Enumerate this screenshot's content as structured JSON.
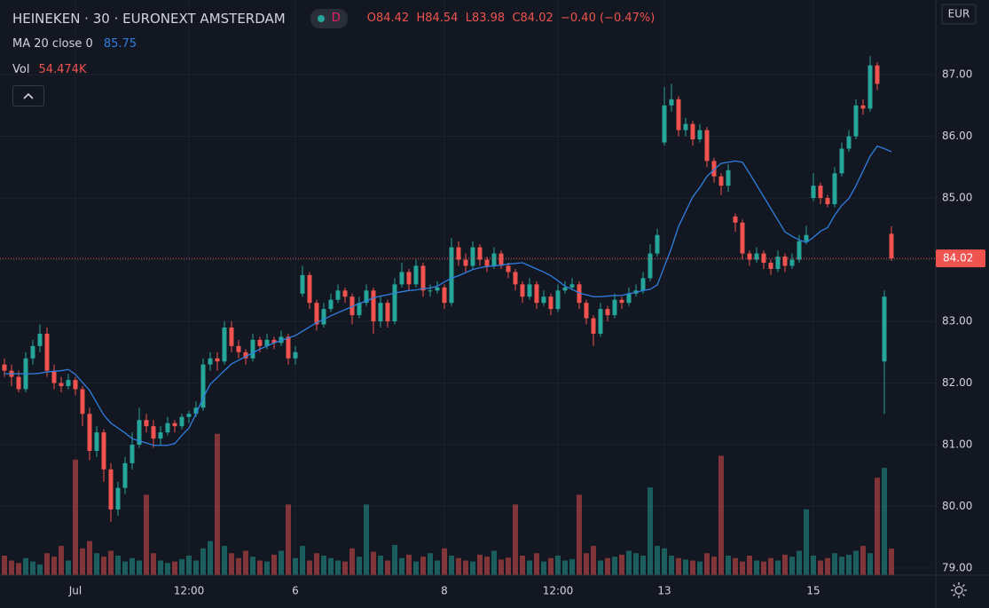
{
  "header": {
    "title": "HEINEKEN · 30 · EURONEXT AMSTERDAM",
    "badge": "D",
    "ohlc_letters": [
      "O",
      "H",
      "L",
      "C"
    ],
    "change": "−0.40 (−0.47%)"
  },
  "chart_data": {
    "type": "candlestick",
    "currency": "EUR",
    "up_color": "#26a69a",
    "down_color": "#ef5350",
    "grid": true,
    "ylim": [
      78.885,
      88.21
    ],
    "yticks": [
      {
        "value": 79,
        "label": "79.00"
      },
      {
        "value": 80,
        "label": "80.00"
      },
      {
        "value": 81,
        "label": "81.00"
      },
      {
        "value": 82,
        "label": "82.00"
      },
      {
        "value": 83,
        "label": "83.00"
      },
      {
        "value": 84,
        "label": "84.00"
      },
      {
        "value": 85,
        "label": "85.00"
      },
      {
        "value": 86,
        "label": "86.00"
      },
      {
        "value": 87,
        "label": "87.00"
      }
    ],
    "y2lim": [
      0,
      1180
    ],
    "categories": [
      null,
      null,
      null,
      null,
      null,
      null,
      null,
      null,
      null,
      null,
      "Jul",
      null,
      null,
      null,
      null,
      null,
      null,
      null,
      null,
      null,
      null,
      null,
      null,
      null,
      null,
      null,
      "12:00",
      null,
      null,
      null,
      null,
      null,
      null,
      null,
      null,
      null,
      null,
      null,
      null,
      null,
      null,
      "6",
      null,
      null,
      null,
      null,
      null,
      null,
      null,
      null,
      null,
      null,
      null,
      null,
      null,
      null,
      null,
      null,
      null,
      null,
      null,
      null,
      "8",
      null,
      null,
      null,
      null,
      null,
      null,
      null,
      null,
      null,
      null,
      null,
      null,
      null,
      null,
      null,
      "12:00",
      null,
      null,
      null,
      null,
      null,
      null,
      null,
      null,
      null,
      null,
      null,
      null,
      null,
      null,
      "13",
      null,
      null,
      null,
      null,
      null,
      null,
      null,
      null,
      null,
      null,
      null,
      null,
      null,
      null,
      null,
      null,
      null,
      null,
      null,
      null,
      "15",
      null,
      null,
      null,
      null,
      null,
      null,
      null,
      null,
      null,
      null,
      null
    ],
    "ohlc": [
      [
        82.3,
        82.4,
        82.1,
        82.2
      ],
      [
        82.2,
        82.3,
        81.95,
        82.1
      ],
      [
        82.1,
        82.2,
        81.85,
        81.9
      ],
      [
        81.9,
        82.5,
        81.85,
        82.4
      ],
      [
        82.4,
        82.7,
        82.3,
        82.6
      ],
      [
        82.6,
        82.95,
        82.5,
        82.8
      ],
      [
        82.8,
        82.9,
        82.1,
        82.2
      ],
      [
        82.2,
        82.3,
        81.9,
        82.0
      ],
      [
        82.0,
        82.1,
        81.85,
        81.95
      ],
      [
        81.95,
        82.15,
        81.9,
        82.05
      ],
      [
        82.05,
        82.1,
        81.8,
        81.9
      ],
      [
        81.9,
        81.95,
        81.3,
        81.5
      ],
      [
        81.5,
        81.6,
        80.75,
        80.9
      ],
      [
        80.9,
        81.3,
        80.8,
        81.2
      ],
      [
        81.2,
        81.25,
        80.4,
        80.6
      ],
      [
        80.6,
        80.7,
        79.75,
        79.95
      ],
      [
        79.95,
        80.4,
        79.85,
        80.3
      ],
      [
        80.3,
        80.8,
        80.2,
        80.7
      ],
      [
        80.7,
        81.2,
        80.6,
        81.0
      ],
      [
        81.0,
        81.6,
        80.95,
        81.4
      ],
      [
        81.4,
        81.5,
        81.2,
        81.3
      ],
      [
        81.3,
        81.4,
        80.95,
        81.1
      ],
      [
        81.1,
        81.3,
        81.0,
        81.2
      ],
      [
        81.2,
        81.45,
        81.15,
        81.35
      ],
      [
        81.35,
        81.4,
        81.2,
        81.3
      ],
      [
        81.3,
        81.5,
        81.25,
        81.45
      ],
      [
        81.45,
        81.55,
        81.35,
        81.5
      ],
      [
        81.5,
        81.7,
        81.45,
        81.6
      ],
      [
        81.6,
        82.4,
        81.55,
        82.3
      ],
      [
        82.3,
        82.5,
        82.2,
        82.4
      ],
      [
        82.4,
        82.5,
        82.2,
        82.35
      ],
      [
        82.35,
        83.0,
        82.3,
        82.9
      ],
      [
        82.9,
        83.0,
        82.5,
        82.6
      ],
      [
        82.6,
        82.7,
        82.4,
        82.5
      ],
      [
        82.5,
        82.55,
        82.3,
        82.4
      ],
      [
        82.4,
        82.8,
        82.35,
        82.7
      ],
      [
        82.7,
        82.75,
        82.5,
        82.6
      ],
      [
        82.6,
        82.8,
        82.55,
        82.7
      ],
      [
        82.7,
        82.75,
        82.55,
        82.65
      ],
      [
        82.65,
        82.85,
        82.6,
        82.75
      ],
      [
        82.75,
        82.8,
        82.3,
        82.4
      ],
      [
        82.4,
        82.6,
        82.3,
        82.5
      ],
      [
        83.45,
        83.9,
        83.4,
        83.75
      ],
      [
        83.75,
        83.8,
        83.2,
        83.3
      ],
      [
        83.3,
        83.35,
        82.85,
        82.95
      ],
      [
        82.95,
        83.3,
        82.9,
        83.2
      ],
      [
        83.2,
        83.45,
        83.15,
        83.35
      ],
      [
        83.35,
        83.6,
        83.3,
        83.5
      ],
      [
        83.5,
        83.55,
        83.3,
        83.4
      ],
      [
        83.4,
        83.45,
        82.95,
        83.1
      ],
      [
        83.1,
        83.4,
        83.05,
        83.3
      ],
      [
        83.3,
        83.6,
        83.25,
        83.5
      ],
      [
        83.5,
        83.55,
        82.8,
        83.0
      ],
      [
        83.0,
        83.4,
        82.9,
        83.3
      ],
      [
        83.3,
        83.35,
        82.9,
        83.0
      ],
      [
        83.0,
        83.7,
        82.95,
        83.6
      ],
      [
        83.6,
        83.95,
        83.55,
        83.8
      ],
      [
        83.8,
        83.85,
        83.5,
        83.6
      ],
      [
        83.6,
        84.0,
        83.55,
        83.9
      ],
      [
        83.9,
        83.95,
        83.4,
        83.5
      ],
      [
        83.5,
        83.6,
        83.4,
        83.5
      ],
      [
        83.5,
        83.65,
        83.45,
        83.55
      ],
      [
        83.55,
        83.6,
        83.2,
        83.3
      ],
      [
        83.3,
        84.35,
        83.25,
        84.2
      ],
      [
        84.2,
        84.3,
        83.9,
        84.0
      ],
      [
        84.0,
        84.1,
        83.8,
        83.9
      ],
      [
        83.9,
        84.3,
        83.85,
        84.2
      ],
      [
        84.2,
        84.25,
        83.9,
        84.0
      ],
      [
        84.0,
        84.05,
        83.8,
        83.9
      ],
      [
        83.9,
        84.2,
        83.85,
        84.1
      ],
      [
        84.1,
        84.15,
        83.85,
        83.9
      ],
      [
        83.9,
        83.95,
        83.7,
        83.8
      ],
      [
        83.8,
        83.85,
        83.5,
        83.6
      ],
      [
        83.6,
        83.65,
        83.3,
        83.4
      ],
      [
        83.4,
        83.7,
        83.35,
        83.6
      ],
      [
        83.6,
        83.65,
        83.2,
        83.3
      ],
      [
        83.3,
        83.5,
        83.25,
        83.4
      ],
      [
        83.4,
        83.45,
        83.1,
        83.2
      ],
      [
        83.2,
        83.6,
        83.15,
        83.5
      ],
      [
        83.5,
        83.65,
        83.45,
        83.55
      ],
      [
        83.55,
        83.7,
        83.5,
        83.6
      ],
      [
        83.6,
        83.65,
        83.2,
        83.3
      ],
      [
        83.3,
        83.35,
        82.95,
        83.05
      ],
      [
        83.05,
        83.1,
        82.6,
        82.8
      ],
      [
        82.8,
        83.3,
        82.75,
        83.2
      ],
      [
        83.2,
        83.25,
        83.0,
        83.1
      ],
      [
        83.1,
        83.45,
        83.05,
        83.35
      ],
      [
        83.35,
        83.4,
        83.2,
        83.3
      ],
      [
        83.3,
        83.55,
        83.25,
        83.45
      ],
      [
        83.45,
        83.6,
        83.4,
        83.5
      ],
      [
        83.5,
        83.8,
        83.45,
        83.7
      ],
      [
        83.7,
        84.25,
        83.65,
        84.1
      ],
      [
        84.1,
        84.5,
        84.05,
        84.4
      ],
      [
        85.9,
        86.8,
        85.85,
        86.5
      ],
      [
        86.5,
        86.85,
        86.4,
        86.6
      ],
      [
        86.6,
        86.65,
        86.0,
        86.1
      ],
      [
        86.1,
        86.3,
        86.0,
        86.2
      ],
      [
        86.2,
        86.25,
        85.85,
        85.95
      ],
      [
        85.95,
        86.2,
        85.9,
        86.1
      ],
      [
        86.1,
        86.15,
        85.5,
        85.6
      ],
      [
        85.6,
        85.65,
        85.25,
        85.35
      ],
      [
        85.35,
        85.4,
        85.05,
        85.2
      ],
      [
        85.2,
        85.55,
        85.1,
        85.45
      ],
      [
        84.7,
        84.75,
        84.45,
        84.6
      ],
      [
        84.6,
        84.65,
        84.0,
        84.1
      ],
      [
        84.1,
        84.15,
        83.9,
        84.0
      ],
      [
        84.0,
        84.2,
        83.95,
        84.1
      ],
      [
        84.1,
        84.15,
        83.85,
        83.95
      ],
      [
        83.95,
        84.0,
        83.75,
        83.85
      ],
      [
        83.85,
        84.15,
        83.8,
        84.05
      ],
      [
        84.05,
        84.1,
        83.8,
        83.9
      ],
      [
        83.9,
        84.1,
        83.85,
        84.0
      ],
      [
        84.0,
        84.4,
        83.95,
        84.3
      ],
      [
        84.3,
        84.55,
        84.25,
        84.4
      ],
      [
        85.0,
        85.4,
        84.95,
        85.2
      ],
      [
        85.2,
        85.25,
        84.9,
        85.0
      ],
      [
        85.0,
        85.05,
        84.85,
        84.9
      ],
      [
        84.9,
        85.5,
        84.85,
        85.4
      ],
      [
        85.4,
        85.9,
        85.35,
        85.8
      ],
      [
        85.8,
        86.1,
        85.75,
        86.0
      ],
      [
        86.0,
        86.6,
        85.95,
        86.5
      ],
      [
        86.5,
        86.6,
        86.35,
        86.45
      ],
      [
        86.45,
        87.3,
        86.4,
        87.15
      ],
      [
        87.15,
        87.2,
        86.75,
        86.85
      ],
      [
        82.35,
        83.5,
        81.5,
        83.4
      ],
      [
        84.42,
        84.54,
        83.98,
        84.02
      ]
    ],
    "ma": {
      "name": "MA 20 close 0",
      "color": "#2f7fe0",
      "values": [
        82.15,
        82.15,
        82.15,
        82.15,
        82.15,
        82.16,
        82.18,
        82.19,
        82.2,
        82.22,
        82.14,
        82.01,
        81.88,
        81.68,
        81.48,
        81.35,
        81.27,
        81.19,
        81.1,
        81.06,
        81.03,
        80.99,
        80.99,
        80.99,
        81.02,
        81.15,
        81.27,
        81.5,
        81.76,
        81.98,
        82.09,
        82.2,
        82.31,
        82.37,
        82.43,
        82.49,
        82.55,
        82.6,
        82.65,
        82.69,
        82.73,
        82.77,
        82.84,
        82.91,
        82.98,
        83.03,
        83.09,
        83.14,
        83.19,
        83.24,
        83.29,
        83.33,
        83.38,
        83.41,
        83.43,
        83.46,
        83.48,
        83.5,
        83.51,
        83.53,
        83.54,
        83.57,
        83.64,
        83.7,
        83.74,
        83.79,
        83.84,
        83.87,
        83.89,
        83.9,
        83.91,
        83.93,
        83.94,
        83.95,
        83.9,
        83.85,
        83.8,
        83.74,
        83.66,
        83.57,
        83.52,
        83.46,
        83.43,
        83.4,
        83.4,
        83.41,
        83.42,
        83.42,
        83.45,
        83.47,
        83.5,
        83.52,
        83.59,
        83.89,
        84.19,
        84.54,
        84.78,
        85.02,
        85.17,
        85.35,
        85.46,
        85.56,
        85.58,
        85.6,
        85.58,
        85.4,
        85.21,
        85.02,
        84.83,
        84.64,
        84.45,
        84.38,
        84.32,
        84.28,
        84.36,
        84.46,
        84.52,
        84.72,
        84.88,
        84.99,
        85.2,
        85.44,
        85.68,
        85.84,
        85.8,
        85.75
      ]
    },
    "volume": {
      "name": "Vol",
      "last_label": "54.474K",
      "values": [
        40,
        30,
        25,
        35,
        28,
        22,
        45,
        38,
        60,
        30,
        237,
        55,
        70,
        45,
        38,
        50,
        40,
        28,
        35,
        30,
        165,
        45,
        30,
        25,
        28,
        33,
        40,
        30,
        55,
        70,
        290,
        60,
        45,
        35,
        50,
        38,
        30,
        28,
        42,
        50,
        145,
        35,
        60,
        30,
        45,
        40,
        35,
        30,
        28,
        55,
        38,
        145,
        48,
        40,
        30,
        62,
        35,
        42,
        28,
        38,
        45,
        30,
        55,
        40,
        35,
        30,
        28,
        42,
        38,
        50,
        32,
        36,
        145,
        40,
        30,
        45,
        28,
        35,
        40,
        30,
        33,
        165,
        45,
        60,
        30,
        35,
        38,
        42,
        50,
        45,
        40,
        180,
        60,
        55,
        40,
        35,
        32,
        30,
        28,
        45,
        38,
        245,
        40,
        35,
        28,
        40,
        30,
        28,
        35,
        30,
        42,
        38,
        50,
        135,
        40,
        30,
        35,
        45,
        38,
        42,
        50,
        60,
        45,
        200,
        220,
        54.474
      ]
    }
  }
}
